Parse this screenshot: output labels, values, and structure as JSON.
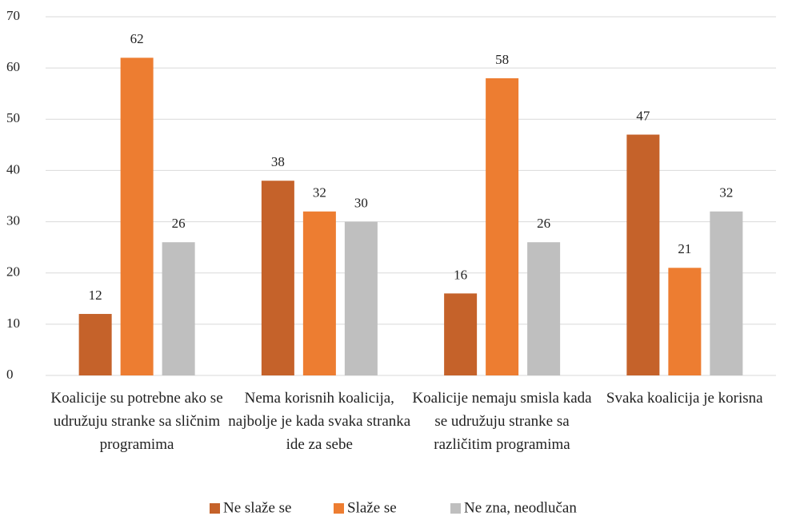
{
  "chart_data": {
    "type": "bar",
    "categories": [
      "Koalicije su potrebne ako se udružuju stranke sa sličnim programima",
      "Nema korisnih koalicija, najbolje je kada svaka stranka ide za sebe",
      "Koalicije nemaju smisla kada se udružuju stranke sa različitim programima",
      "Svaka koalicija je korisna"
    ],
    "series": [
      {
        "name": "Ne slaže se",
        "color": "#c5622a",
        "values": [
          12,
          38,
          16,
          47
        ]
      },
      {
        "name": "Slaže se",
        "color": "#ed7d31",
        "values": [
          62,
          32,
          58,
          21
        ]
      },
      {
        "name": "Ne zna, neodlučan",
        "color": "#bfbfbf",
        "values": [
          26,
          30,
          26,
          32
        ]
      }
    ],
    "ylim": [
      0,
      70
    ],
    "yticks": [
      0,
      10,
      20,
      30,
      40,
      50,
      60,
      70
    ],
    "grid": true,
    "legend": "bottom"
  }
}
